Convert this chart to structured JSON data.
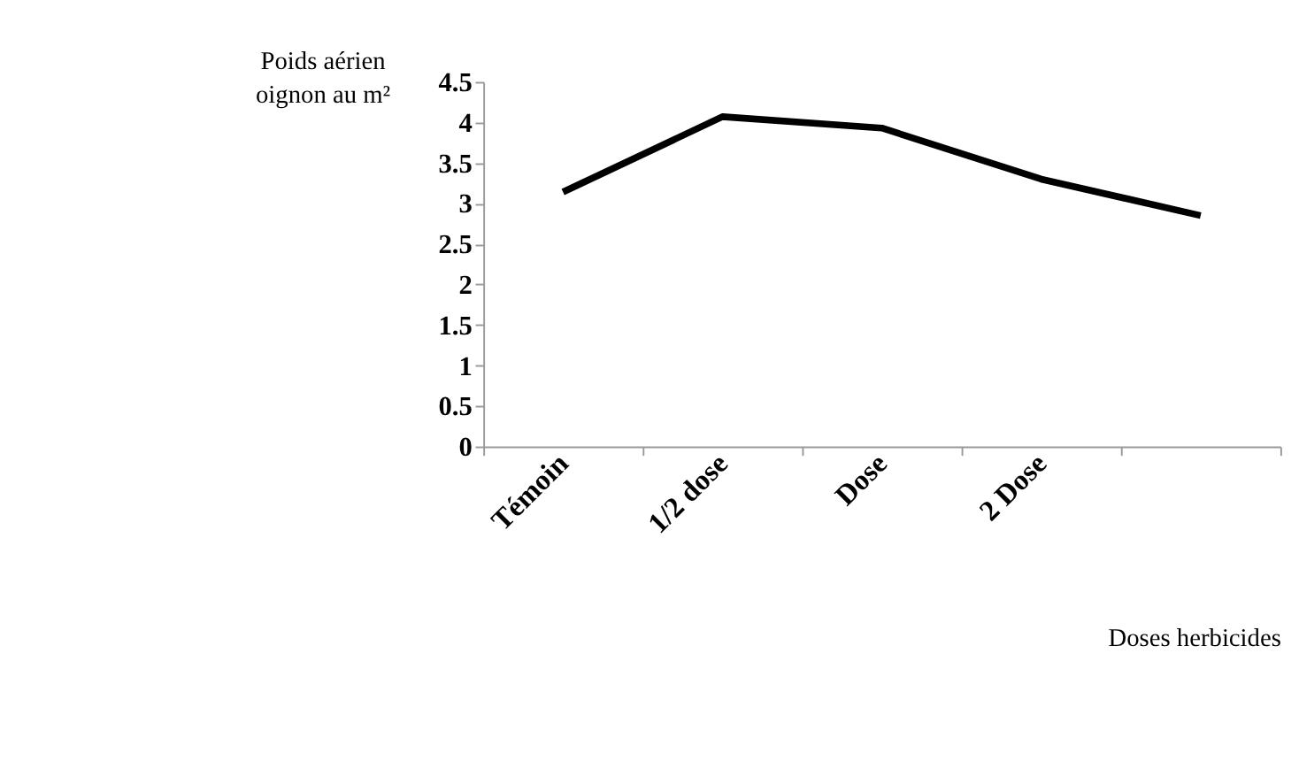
{
  "chart_data": {
    "type": "line",
    "categories": [
      "Témoin",
      "1/2 dose",
      "Dose",
      "2 Dose",
      null
    ],
    "series": [
      {
        "color": "#000000",
        "values": [
          3.14,
          4.07,
          3.93,
          3.3,
          2.85
        ]
      }
    ],
    "ylim": [
      0,
      4.5
    ],
    "yticks": [
      0,
      0.5,
      1,
      1.5,
      2,
      2.5,
      3,
      3.5,
      4,
      4.5
    ],
    "ylabel": "Poids aérien oignon au m²",
    "xlabel": "Doses herbicides",
    "grid": false,
    "legend": false,
    "marker": "none",
    "line_style": "solid"
  }
}
